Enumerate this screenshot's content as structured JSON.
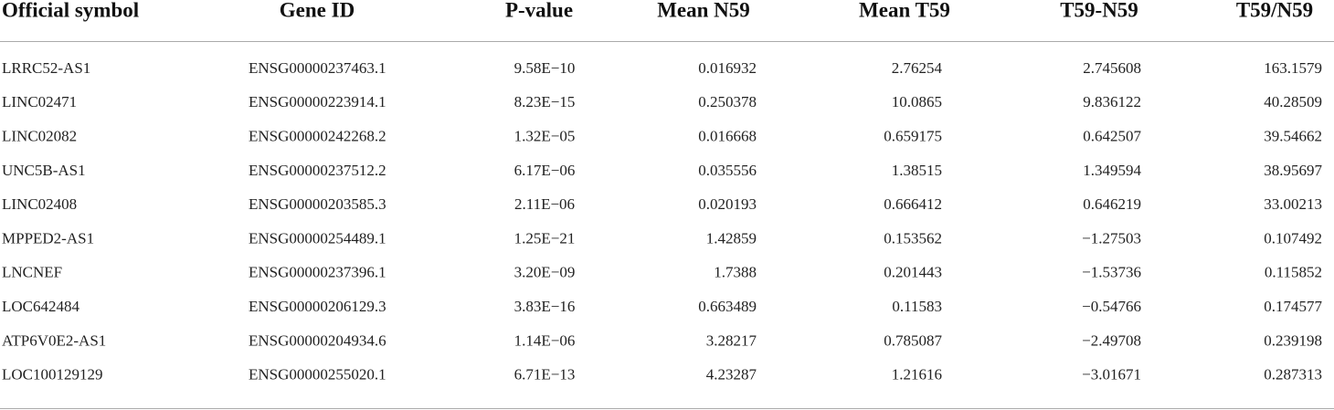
{
  "table": {
    "header": [
      "Official symbol",
      "Gene ID",
      "P-value",
      "Mean N59",
      "Mean T59",
      "T59-N59",
      "T59/N59"
    ],
    "rows": [
      [
        "LRRC52-AS1",
        "ENSG00000237463.1",
        "9.58E−10",
        "0.016932",
        "2.76254",
        "2.745608",
        "163.1579"
      ],
      [
        "LINC02471",
        "ENSG00000223914.1",
        "8.23E−15",
        "0.250378",
        "10.0865",
        "9.836122",
        "40.28509"
      ],
      [
        "LINC02082",
        "ENSG00000242268.2",
        "1.32E−05",
        "0.016668",
        "0.659175",
        "0.642507",
        "39.54662"
      ],
      [
        "UNC5B-AS1",
        "ENSG00000237512.2",
        "6.17E−06",
        "0.035556",
        "1.38515",
        "1.349594",
        "38.95697"
      ],
      [
        "LINC02408",
        "ENSG00000203585.3",
        "2.11E−06",
        "0.020193",
        "0.666412",
        "0.646219",
        "33.00213"
      ],
      [
        "MPPED2-AS1",
        "ENSG00000254489.1",
        "1.25E−21",
        "1.42859",
        "0.153562",
        "−1.27503",
        "0.107492"
      ],
      [
        "LNCNEF",
        "ENSG00000237396.1",
        "3.20E−09",
        "1.7388",
        "0.201443",
        "−1.53736",
        "0.115852"
      ],
      [
        "LOC642484",
        "ENSG00000206129.3",
        "3.83E−16",
        "0.663489",
        "0.11583",
        "−0.54766",
        "0.174577"
      ],
      [
        "ATP6V0E2-AS1",
        "ENSG00000204934.6",
        "1.14E−06",
        "3.28217",
        "0.785087",
        "−2.49708",
        "0.239198"
      ],
      [
        "LOC100129129",
        "ENSG00000255020.1",
        "6.71E−13",
        "4.23287",
        "1.21616",
        "−3.01671",
        "0.287313"
      ]
    ]
  }
}
